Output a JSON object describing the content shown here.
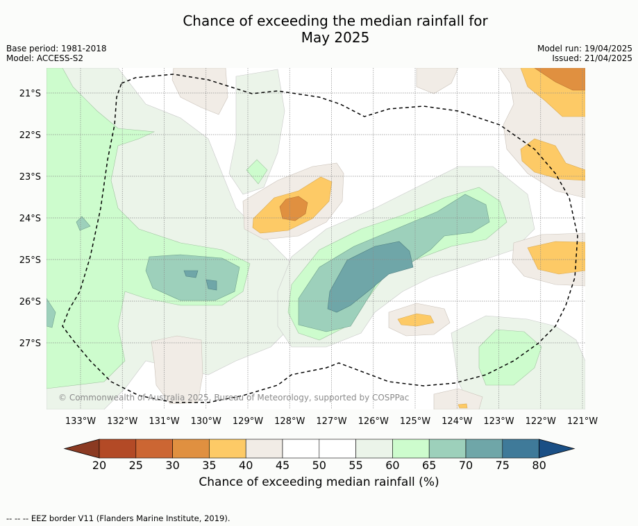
{
  "title_line1": "Chance of exceeding the median rainfall for",
  "title_line2": "May 2025",
  "base_period": "Base period: 1981-2018",
  "model": "Model: ACCESS-S2",
  "model_run": "Model run: 19/04/2025",
  "issued": "Issued: 21/04/2025",
  "copyright": "© Commonwealth of Australia 2025, Bureau of Meteorology, supported by COSPPac",
  "footnote": "-- -- -- EEZ border V11 (Flanders Marine Institute, 2019).",
  "lon_labels": [
    "133°W",
    "132°W",
    "131°W",
    "130°W",
    "129°W",
    "128°W",
    "127°W",
    "126°W",
    "125°W",
    "124°W",
    "123°W",
    "122°W",
    "121°W"
  ],
  "lat_labels": [
    "21°S",
    "22°S",
    "23°S",
    "24°S",
    "25°S",
    "26°S",
    "27°S"
  ],
  "colorbar": {
    "title": "Chance of exceeding median rainfall (%)",
    "ticks": [
      "20",
      "25",
      "30",
      "35",
      "40",
      "45",
      "50",
      "55",
      "60",
      "65",
      "70",
      "75",
      "80"
    ],
    "colors": [
      "#b34a26",
      "#cc6633",
      "#e09040",
      "#fdca66",
      "#f1ece6",
      "#ffffff",
      "#ffffff",
      "#ebf4e9",
      "#cdfccd",
      "#9dd0bb",
      "#6fa6a8",
      "#3f7a99"
    ],
    "under_color": "#8b3a22",
    "over_color": "#1a4f85"
  }
}
